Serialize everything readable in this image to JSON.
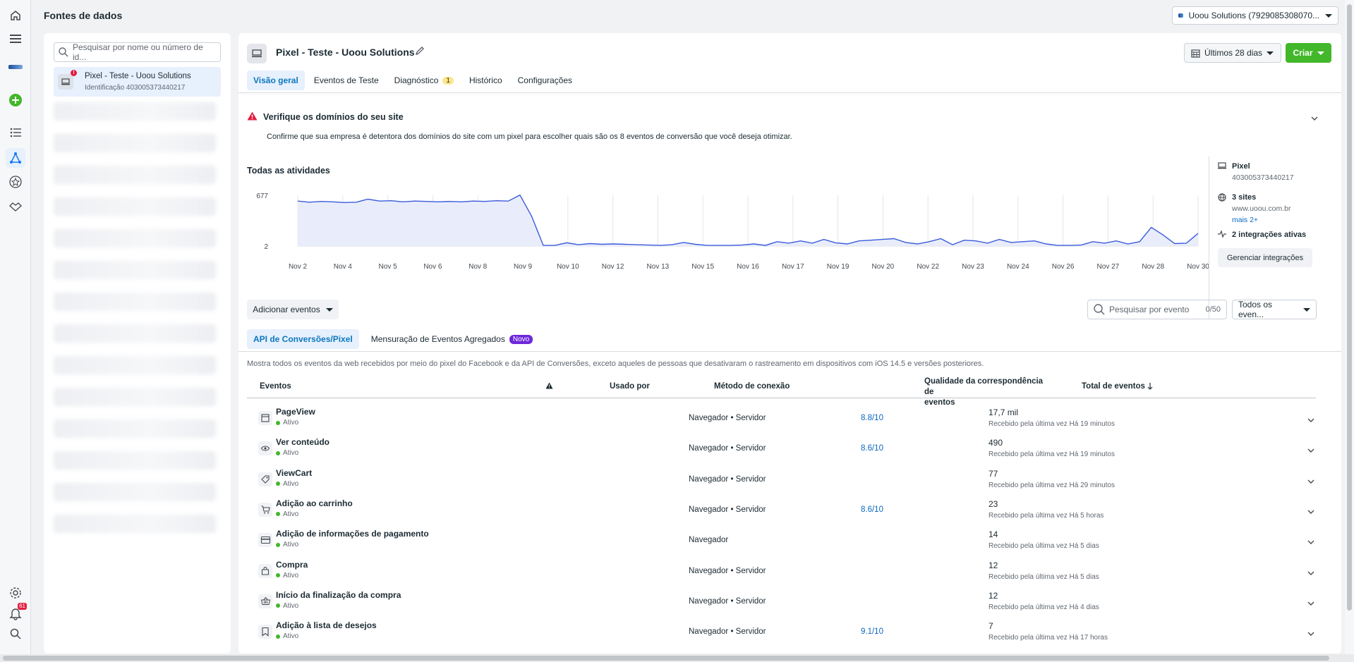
{
  "header": {
    "title": "Fontes de dados",
    "account": "Uoou Solutions (7929085308070..."
  },
  "rail": {
    "notifications_count": "61"
  },
  "sources": {
    "search_placeholder": "Pesquisar por nome ou número de id...",
    "selected": {
      "name": "Pixel - Teste - Uoou Solutions",
      "id": "Identificação 403005373440217"
    }
  },
  "source": {
    "title": "Pixel - Teste - Uoou Solutions",
    "date_range": "Últimos 28 dias",
    "create_label": "Criar",
    "tabs": [
      {
        "label": "Visão geral"
      },
      {
        "label": "Eventos de Teste"
      },
      {
        "label": "Diagnóstico",
        "badge": "1"
      },
      {
        "label": "Histórico"
      },
      {
        "label": "Configurações"
      }
    ]
  },
  "warning": {
    "title": "Verifique os domínios do seu site",
    "description": "Confirme que sua empresa é detentora dos domínios do site com um pixel para escolher quais são os 8 eventos de conversão que você deseja otimizar."
  },
  "chart_data": {
    "type": "area",
    "title": "Todas as atividades",
    "yticks": [
      "677",
      "2"
    ],
    "ylim": [
      2,
      677
    ],
    "x_ticks": [
      "Nov 2",
      "Nov 4",
      "Nov 5",
      "Nov 6",
      "Nov 8",
      "Nov 9",
      "Nov 10",
      "Nov 12",
      "Nov 13",
      "Nov 15",
      "Nov 16",
      "Nov 17",
      "Nov 19",
      "Nov 20",
      "Nov 22",
      "Nov 23",
      "Nov 24",
      "Nov 26",
      "Nov 27",
      "Nov 28",
      "Nov 30"
    ],
    "values": [
      600,
      585,
      595,
      590,
      580,
      585,
      625,
      600,
      605,
      590,
      600,
      595,
      590,
      595,
      590,
      600,
      595,
      605,
      600,
      680,
      400,
      10,
      10,
      45,
      20,
      35,
      25,
      30,
      25,
      20,
      15,
      10,
      20,
      50,
      25,
      10,
      10,
      10,
      15,
      30,
      10,
      60,
      40,
      70,
      40,
      90,
      45,
      30,
      70,
      80,
      90,
      100,
      50,
      30,
      60,
      100,
      20,
      80,
      70,
      40,
      90,
      50,
      60,
      70,
      30,
      10,
      10,
      15,
      60,
      40,
      70,
      30,
      60,
      250,
      150,
      35,
      40,
      170
    ]
  },
  "pixel_info": {
    "pixel_label": "Pixel",
    "pixel_id": "403005373440217",
    "sites_label": "3 sites",
    "site": "www.uoou.com.br",
    "more": "mais 2+",
    "integrations": "2 integrações ativas",
    "manage_label": "Gerenciar integrações"
  },
  "events_toolbar": {
    "add_label": "Adicionar eventos",
    "search_placeholder": "Pesquisar por evento",
    "search_count": "0/50",
    "filter_label": "Todos os even..."
  },
  "events_tabs": {
    "api": "API de Conversões/Pixel",
    "agg": "Mensuração de Eventos Agregados",
    "new_badge": "Novo"
  },
  "events_desc": "Mostra todos os eventos da web recebidos por meio do pixel do Facebook e da API de Conversões, exceto aqueles de pessoas que desativaram o rastreamento em dispositivos com iOS 14.5 e versões posteriores.",
  "table": {
    "col_events": "Eventos",
    "col_used": "Usado por",
    "col_method": "Método de conexão",
    "col_quality_1": "Qualidade da correspondência de",
    "col_quality_2": "eventos",
    "col_total": "Total de eventos",
    "rows": [
      {
        "icon": "page-icon",
        "name": "PageView",
        "status": "Ativo",
        "method": "Navegador • Servidor",
        "quality": "8.8/10",
        "total": "17,7 mil",
        "last": "Recebido pela última vez Há 19 minutos"
      },
      {
        "icon": "eye-icon",
        "name": "Ver conteúdo",
        "status": "Ativo",
        "method": "Navegador • Servidor",
        "quality": "8.6/10",
        "total": "490",
        "last": "Recebido pela última vez Há 19 minutos"
      },
      {
        "icon": "tag-icon",
        "name": "ViewCart",
        "status": "Ativo",
        "method": "Navegador • Servidor",
        "quality": "",
        "total": "77",
        "last": "Recebido pela última vez Há 29 minutos"
      },
      {
        "icon": "cart-icon",
        "name": "Adição ao carrinho",
        "status": "Ativo",
        "method": "Navegador • Servidor",
        "quality": "8.6/10",
        "total": "23",
        "last": "Recebido pela última vez Há 5 horas"
      },
      {
        "icon": "card-icon",
        "name": "Adição de informações de pagamento",
        "status": "Ativo",
        "method": "Navegador",
        "quality": "",
        "total": "14",
        "last": "Recebido pela última vez Há 5 dias"
      },
      {
        "icon": "bag-icon",
        "name": "Compra",
        "status": "Ativo",
        "method": "Navegador • Servidor",
        "quality": "",
        "total": "12",
        "last": "Recebido pela última vez Há 5 dias"
      },
      {
        "icon": "basket-icon",
        "name": "Início da finalização da compra",
        "status": "Ativo",
        "method": "Navegador • Servidor",
        "quality": "",
        "total": "12",
        "last": "Recebido pela última vez Há 4 dias"
      },
      {
        "icon": "bookmark-icon",
        "name": "Adição à lista de desejos",
        "status": "Ativo",
        "method": "Navegador • Servidor",
        "quality": "9.1/10",
        "total": "7",
        "last": "Recebido pela última vez Há 17 horas"
      }
    ]
  },
  "colors": {
    "accent": "#1877f2",
    "create": "#42b72a",
    "chart_line": "#3b5bdb",
    "chart_fill": "#e9edfb"
  }
}
